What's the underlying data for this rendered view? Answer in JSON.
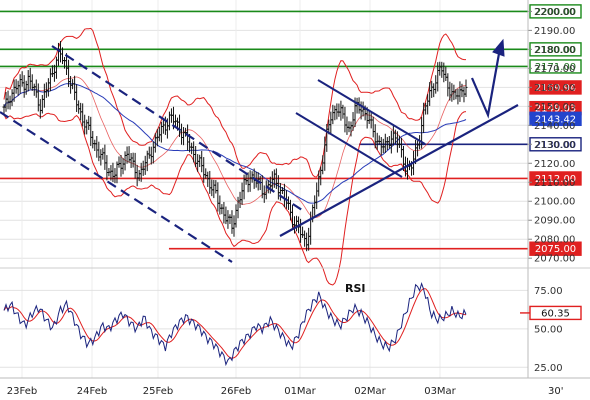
{
  "chart_data": [
    {
      "type": "candlestick",
      "instrument_timeframe": "30'",
      "ylim": [
        2068,
        2206
      ],
      "yticks": [
        "2070.00",
        "2080.00",
        "2090.00",
        "2100.00",
        "2110.00",
        "2120.00",
        "2130.00",
        "2140.00",
        "2150.00",
        "2160.00",
        "2170.00",
        "2180.00",
        "2190.00",
        "2200.00"
      ],
      "xticks": [
        "23Feb",
        "24Feb",
        "25Feb",
        "26Feb",
        "01Mar",
        "02Mar",
        "03Mar"
      ],
      "level_labels": [
        {
          "value": 2200,
          "label": "2200.00",
          "color": "#1a8a1a",
          "text_color": "#1a6a1a"
        },
        {
          "value": 2180,
          "label": "2180.00",
          "color": "#1a8a1a",
          "text_color": "#1a6a1a"
        },
        {
          "value": 2171,
          "label": "2171.00",
          "color": "#1a8a1a",
          "text_color": "#1a6a1a"
        },
        {
          "value": 2159.94,
          "label": "2159.94",
          "color": "#e02020",
          "text_color": "#ffffff"
        },
        {
          "value": 2149.03,
          "label": "2149.03",
          "color": "#e02020",
          "text_color": "#ffffff"
        },
        {
          "value": 2143.42,
          "label": "2143.42",
          "color": "#2244cc",
          "text_color": "#ffffff"
        },
        {
          "value": 2130,
          "label": "2130.00",
          "color": "#1a237e",
          "text_color": "#1a237e"
        },
        {
          "value": 2112,
          "label": "2112.00",
          "color": "#e02020",
          "text_color": "#ffffff"
        },
        {
          "value": 2075,
          "label": "2075.00",
          "color": "#e02020",
          "text_color": "#ffffff"
        }
      ],
      "horizontal_lines": [
        {
          "value": 2200,
          "color": "#1a8a1a",
          "x_from_fraction": 0.0
        },
        {
          "value": 2180,
          "color": "#1a8a1a",
          "x_from_fraction": 0.0
        },
        {
          "value": 2171,
          "color": "#1a8a1a",
          "x_from_fraction": 0.0
        },
        {
          "value": 2130,
          "color": "#1a237e",
          "x_from_fraction": 0.68
        },
        {
          "value": 2112,
          "color": "#e02020",
          "x_from_fraction": 0.0
        },
        {
          "value": 2075,
          "color": "#e02020",
          "x_from_fraction": 0.32
        }
      ],
      "price_path": [
        2148,
        2156,
        2160,
        2162,
        2164,
        2158,
        2150,
        2160,
        2170,
        2178,
        2172,
        2160,
        2150,
        2142,
        2135,
        2128,
        2122,
        2116,
        2114,
        2120,
        2125,
        2118,
        2114,
        2120,
        2128,
        2134,
        2140,
        2144,
        2141,
        2136,
        2130,
        2124,
        2118,
        2112,
        2106,
        2098,
        2092,
        2086,
        2100,
        2108,
        2114,
        2110,
        2106,
        2108,
        2112,
        2105,
        2098,
        2090,
        2084,
        2078,
        2092,
        2110,
        2128,
        2144,
        2150,
        2144,
        2138,
        2148,
        2150,
        2144,
        2136,
        2130,
        2128,
        2136,
        2130,
        2120,
        2116,
        2128,
        2144,
        2156,
        2164,
        2170,
        2162,
        2154,
        2158,
        2160
      ],
      "rsi": {
        "title": "RSI",
        "current_value": "60.35",
        "ylim": [
          20,
          85
        ],
        "yticks": [
          "25.00",
          "50.00",
          "60.35",
          "75.00"
        ],
        "values": [
          62,
          66,
          58,
          52,
          60,
          64,
          56,
          50,
          62,
          66,
          56,
          46,
          40,
          44,
          52,
          50,
          56,
          60,
          54,
          50,
          58,
          48,
          44,
          38,
          48,
          54,
          58,
          54,
          50,
          44,
          40,
          34,
          28,
          36,
          42,
          46,
          52,
          50,
          56,
          50,
          44,
          38,
          46,
          58,
          66,
          72,
          62,
          56,
          52,
          58,
          64,
          60,
          54,
          46,
          40,
          38,
          44,
          56,
          68,
          78,
          76,
          60,
          56,
          58,
          62,
          58,
          60
        ]
      }
    }
  ]
}
